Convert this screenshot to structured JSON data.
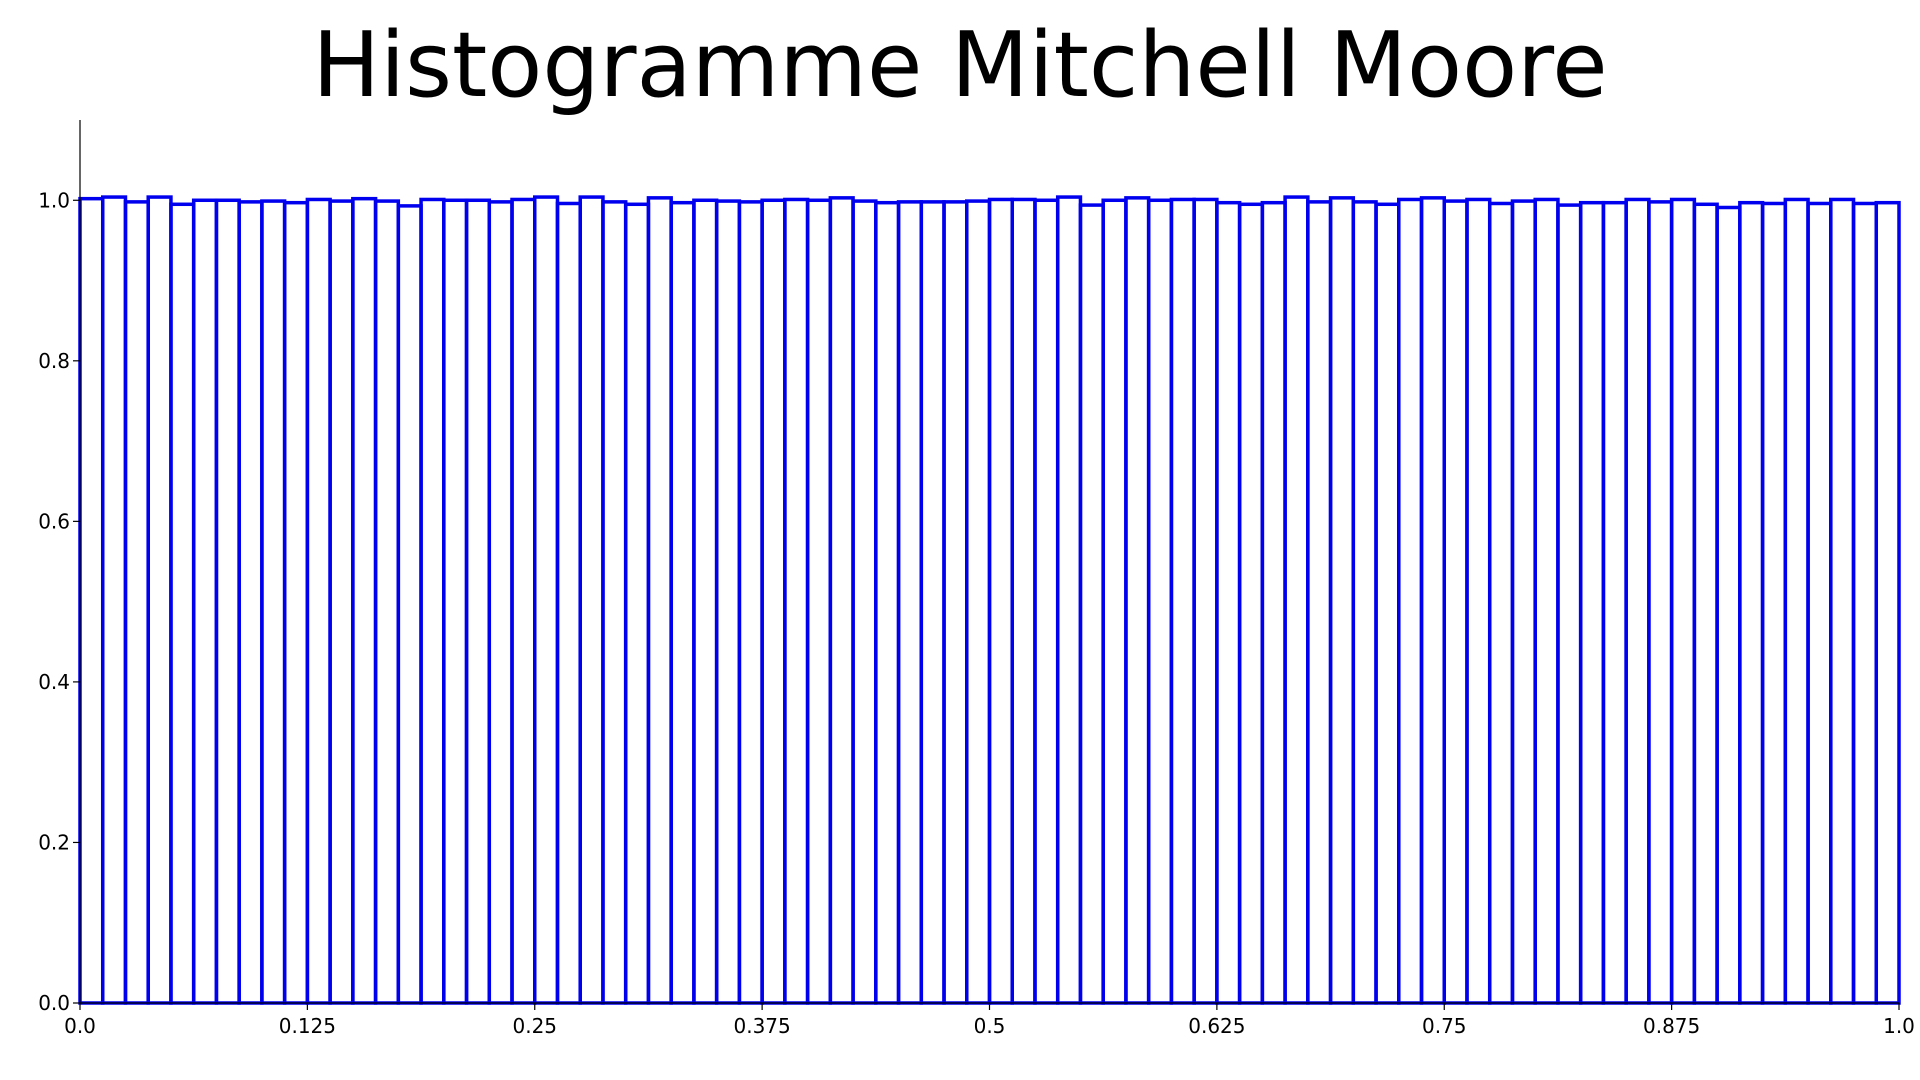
{
  "chart_data": {
    "type": "bar",
    "title": "Histogramme Mitchell Moore",
    "xlabel": "",
    "ylabel": "",
    "xlim": [
      0,
      1
    ],
    "ylim": [
      0,
      1.1
    ],
    "grid": false,
    "bar_style": "outline",
    "bar_color": "#0000ee",
    "x_ticks": [
      {
        "value": 0,
        "label": "0.0"
      },
      {
        "value": 0.125,
        "label": "0.125"
      },
      {
        "value": 0.25,
        "label": "0.25"
      },
      {
        "value": 0.375,
        "label": "0.375"
      },
      {
        "value": 0.5,
        "label": "0.5"
      },
      {
        "value": 0.625,
        "label": "0.625"
      },
      {
        "value": 0.75,
        "label": "0.75"
      },
      {
        "value": 0.875,
        "label": "0.875"
      },
      {
        "value": 1,
        "label": "1.0"
      }
    ],
    "y_ticks": [
      {
        "value": 0,
        "label": "0.0"
      },
      {
        "value": 0.2,
        "label": "0.2"
      },
      {
        "value": 0.4,
        "label": "0.4"
      },
      {
        "value": 0.6,
        "label": "0.6"
      },
      {
        "value": 0.8,
        "label": "0.8"
      },
      {
        "value": 1.0,
        "label": "1.0"
      }
    ],
    "bin_range": [
      0,
      1
    ],
    "values": [
      1.002,
      1.004,
      0.998,
      1.004,
      0.995,
      1.0,
      1.0,
      0.998,
      0.999,
      0.997,
      1.001,
      0.999,
      1.002,
      0.999,
      0.993,
      1.001,
      1.0,
      1.0,
      0.998,
      1.001,
      1.004,
      0.996,
      1.004,
      0.998,
      0.995,
      1.003,
      0.997,
      1.0,
      0.999,
      0.998,
      1.0,
      1.001,
      1.0,
      1.003,
      0.999,
      0.997,
      0.998,
      0.998,
      0.998,
      0.999,
      1.001,
      1.001,
      1.0,
      1.004,
      0.994,
      1.0,
      1.003,
      1.0,
      1.001,
      1.001,
      0.997,
      0.995,
      0.997,
      1.004,
      0.998,
      1.003,
      0.998,
      0.995,
      1.001,
      1.003,
      0.999,
      1.001,
      0.996,
      0.999,
      1.001,
      0.994,
      0.997,
      0.997,
      1.001,
      0.998,
      1.001,
      0.995,
      0.991,
      0.997,
      0.996,
      1.001,
      0.996,
      1.001,
      0.996,
      0.997
    ]
  }
}
